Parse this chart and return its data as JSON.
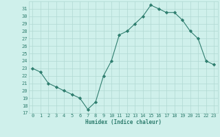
{
  "x": [
    0,
    1,
    2,
    3,
    4,
    5,
    6,
    7,
    8,
    9,
    10,
    11,
    12,
    13,
    14,
    15,
    16,
    17,
    18,
    19,
    20,
    21,
    22,
    23
  ],
  "y": [
    23,
    22.5,
    21,
    20.5,
    20,
    19.5,
    19,
    17.5,
    18.5,
    22,
    24,
    27.5,
    28,
    29,
    30,
    31.5,
    31,
    30.5,
    30.5,
    29.5,
    28,
    27,
    24,
    23.5
  ],
  "xlabel": "Humidex (Indice chaleur)",
  "xlim": [
    -0.5,
    23.5
  ],
  "ylim": [
    17,
    32
  ],
  "yticks": [
    17,
    18,
    19,
    20,
    21,
    22,
    23,
    24,
    25,
    26,
    27,
    28,
    29,
    30,
    31
  ],
  "xticks": [
    0,
    1,
    2,
    3,
    4,
    5,
    6,
    7,
    8,
    9,
    10,
    11,
    12,
    13,
    14,
    15,
    16,
    17,
    18,
    19,
    20,
    21,
    22,
    23
  ],
  "line_color": "#2e7d6e",
  "marker_color": "#2e7d6e",
  "bg_color": "#cff0eb",
  "grid_color": "#b0d8d2",
  "label_color": "#2e7d6e",
  "tick_color": "#2e7d6e"
}
